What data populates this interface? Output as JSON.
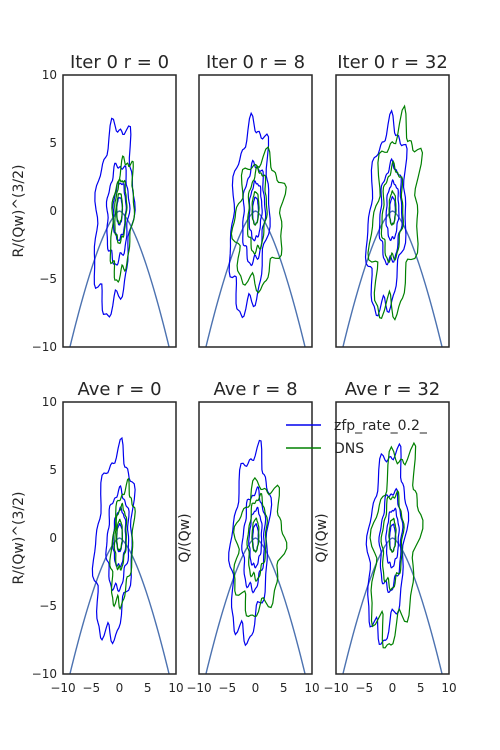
{
  "chart_data": {
    "type": "contour",
    "colors": {
      "model": "#0000ee",
      "dns": "#008000",
      "curve": "#4c72b0",
      "axes": "#262626"
    },
    "xlim": [
      -10,
      10
    ],
    "ylim": [
      -10,
      10
    ],
    "xticks": [
      "−10",
      "−5",
      "0",
      "5",
      "10"
    ],
    "yticks": [
      "10",
      "5",
      "0",
      "−5",
      "−10"
    ],
    "legend": {
      "placement": "upper-right",
      "entries": [
        "zfp_rate_0.2_",
        "DNS"
      ]
    },
    "grid": false,
    "panels": [
      {
        "title": "Iter 0 r = 0",
        "ylabel": "R/(Qw)^(3/2)",
        "show_xticks": false,
        "show_yticks": true
      },
      {
        "title": "Iter 0 r = 8",
        "ylabel": "",
        "show_xticks": false,
        "show_yticks": false
      },
      {
        "title": "Iter 0 r = 32",
        "ylabel": "",
        "show_xticks": false,
        "show_yticks": false
      },
      {
        "title": "Ave r = 0",
        "ylabel": "R/(Qw)^(3/2)",
        "show_xticks": true,
        "show_yticks": true
      },
      {
        "title": "Ave r = 8",
        "ylabel": "Q/(Qw)",
        "show_xticks": true,
        "show_yticks": false
      },
      {
        "title": "Ave r = 32",
        "ylabel": "Q/(Qw)",
        "show_xticks": true,
        "show_yticks": false
      }
    ],
    "series": [
      {
        "name": "zfp_rate_0.2_",
        "kind": "contour"
      },
      {
        "name": "DNS",
        "kind": "contour"
      }
    ]
  }
}
